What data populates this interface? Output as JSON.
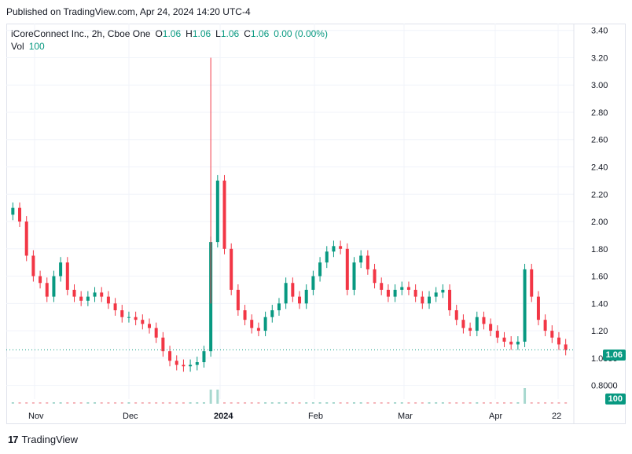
{
  "header": {
    "published": "Published on TradingView.com, Apr 24, 2024 14:20 UTC-4"
  },
  "legend": {
    "symbol": "iCoreConnect Inc., 2h, Cboe One",
    "o_label": "O",
    "o_value": "1.06",
    "h_label": "H",
    "h_value": "1.06",
    "l_label": "L",
    "l_value": "1.06",
    "c_label": "C",
    "c_value": "1.06",
    "change": "0.00 (0.00%)",
    "vol_label": "Vol",
    "vol_value": "100"
  },
  "badges": {
    "last_price": "1.06",
    "last_volume": "100"
  },
  "footer": {
    "brand": "TradingView"
  },
  "colors": {
    "up": "#089981",
    "down": "#f23645",
    "grid": "#f0f3fa",
    "axis_text": "#131722"
  },
  "chart_data": {
    "type": "candlestick",
    "y_ticks": [
      "3.40",
      "3.20",
      "3.00",
      "2.80",
      "2.60",
      "2.40",
      "2.20",
      "2.00",
      "1.80",
      "1.60",
      "1.40",
      "1.20",
      "1.0000",
      "0.8000"
    ],
    "ylim": [
      0.7,
      3.45
    ],
    "x_ticks": [
      "Nov",
      "Dec",
      "2024",
      "Feb",
      "Mar",
      "Apr",
      "22"
    ],
    "grid": true,
    "last_price": 1.06,
    "series": [
      {
        "name": "price",
        "values": [
          2.1,
          2.0,
          1.75,
          1.6,
          1.55,
          1.45,
          1.6,
          1.7,
          1.5,
          1.45,
          1.42,
          1.45,
          1.48,
          1.45,
          1.4,
          1.35,
          1.3,
          1.3,
          1.28,
          1.25,
          1.22,
          1.15,
          1.05,
          0.98,
          0.95,
          0.94,
          0.95,
          0.97,
          1.05,
          1.85,
          2.3,
          1.8,
          1.5,
          1.35,
          1.28,
          1.22,
          1.2,
          1.3,
          1.35,
          1.4,
          1.55,
          1.45,
          1.4,
          1.5,
          1.6,
          1.7,
          1.78,
          1.82,
          1.8,
          1.5,
          1.7,
          1.75,
          1.65,
          1.55,
          1.5,
          1.45,
          1.5,
          1.52,
          1.5,
          1.45,
          1.4,
          1.45,
          1.48,
          1.5,
          1.35,
          1.28,
          1.22,
          1.2,
          1.3,
          1.25,
          1.2,
          1.15,
          1.12,
          1.1,
          1.12,
          1.65,
          1.45,
          1.28,
          1.2,
          1.15,
          1.1,
          1.06
        ]
      }
    ]
  }
}
